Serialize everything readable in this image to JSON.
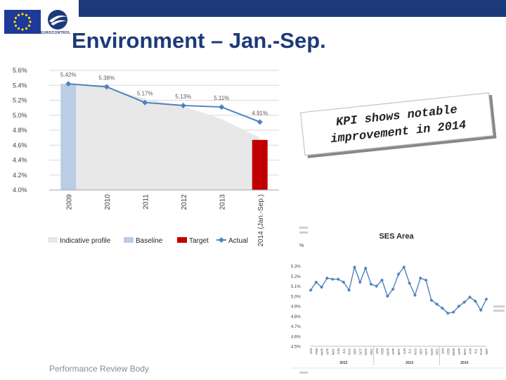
{
  "page": {
    "title": "Environment – Jan.-Sep.",
    "footer": "Performance Review Body",
    "callout_line1": "KPI shows notable",
    "callout_line2": "improvement in 2014"
  },
  "logos": {
    "eurocontrol_text": "EUROCONTROL"
  },
  "chart_data": [
    {
      "type": "bar",
      "title": "",
      "categories": [
        "2009",
        "2010",
        "2011",
        "2012",
        "2013",
        "2014 (Jan.-Sep.)"
      ],
      "ylim": [
        4.0,
        5.6
      ],
      "yticks": [
        "4.0%",
        "4.2%",
        "4.4%",
        "4.6%",
        "4.8%",
        "5.0%",
        "5.2%",
        "5.4%",
        "5.6%"
      ],
      "series": [
        {
          "name": "Indicative profile",
          "kind": "area",
          "color": "#e8e8e8",
          "values": [
            5.42,
            5.37,
            5.22,
            5.12,
            4.95,
            4.7
          ]
        },
        {
          "name": "Baseline",
          "kind": "bar",
          "color": "#b9cde5",
          "values": [
            5.42,
            null,
            null,
            null,
            null,
            null
          ]
        },
        {
          "name": "Target",
          "kind": "bar",
          "color": "#c00000",
          "values": [
            null,
            null,
            null,
            null,
            null,
            4.67
          ]
        },
        {
          "name": "Actual",
          "kind": "line",
          "color": "#4f81bd",
          "values": [
            5.42,
            5.38,
            5.17,
            5.13,
            5.11,
            4.91
          ]
        }
      ],
      "data_labels": [
        "5.42%",
        "5.38%",
        "5.17%",
        "5.13%",
        "5.11%",
        "4.91%"
      ],
      "legend": [
        "Indicative profile",
        "Baseline",
        "Target",
        "Actual"
      ],
      "legend_position": "bottom"
    },
    {
      "type": "line",
      "title": "SES Area",
      "ylabel": "%",
      "ylim": [
        4.5,
        5.4
      ],
      "yticks": [
        "4.5%",
        "4.6%",
        "4.7%",
        "4.8%",
        "4.9%",
        "5.0%",
        "5.1%",
        "5.2%",
        "5.3%"
      ],
      "months": [
        "JAN",
        "FEB",
        "MAR",
        "APR",
        "MAY",
        "JUN",
        "JUL",
        "AUG",
        "SEP",
        "OCT",
        "NOV",
        "DEC",
        "JAN",
        "FEB",
        "MAR",
        "APR",
        "MAY",
        "JUN",
        "JUL",
        "AUG",
        "SEP",
        "OCT",
        "NOV",
        "DEC",
        "JAN",
        "FEB",
        "MAR",
        "APR",
        "MAY",
        "JUN",
        "JUL",
        "AUG",
        "SEP"
      ],
      "years": [
        "2012",
        "2013",
        "2014"
      ],
      "values": [
        5.06,
        5.14,
        5.09,
        5.18,
        5.17,
        5.17,
        5.14,
        5.06,
        5.29,
        5.14,
        5.28,
        5.12,
        5.1,
        5.16,
        5.0,
        5.07,
        5.22,
        5.29,
        5.13,
        5.01,
        5.18,
        5.16,
        4.96,
        4.92,
        4.88,
        4.83,
        4.84,
        4.9,
        4.94,
        4.99,
        4.95,
        4.86,
        4.97
      ]
    }
  ]
}
